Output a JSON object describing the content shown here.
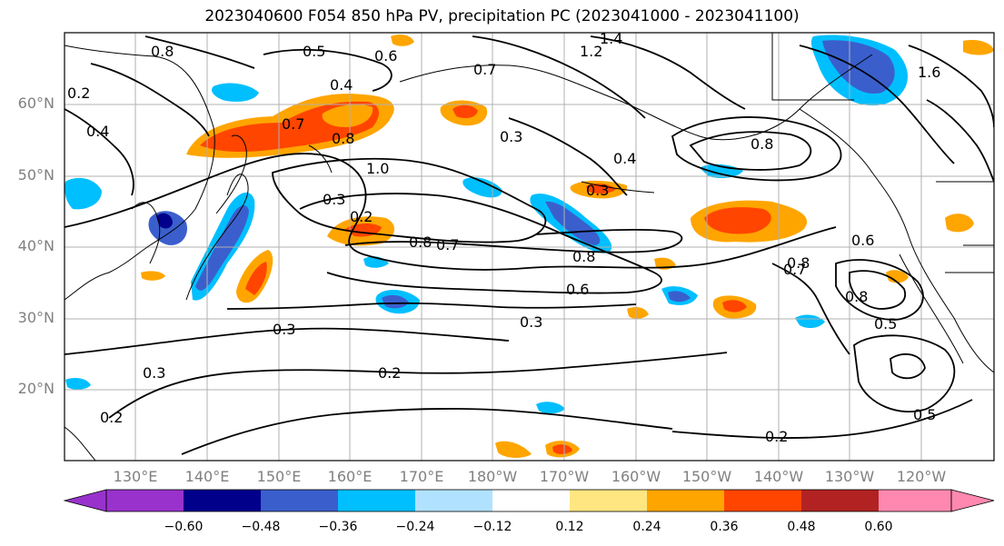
{
  "title": "2023040600 F054 850 hPa PV, precipitation PC (2023041000 - 2023041100)",
  "map": {
    "lat_labels": [
      "60°N",
      "50°N",
      "40°N",
      "30°N",
      "20°N"
    ],
    "lon_labels": [
      "130°E",
      "140°E",
      "150°E",
      "160°E",
      "170°E",
      "180°W",
      "170°W",
      "160°W",
      "150°W",
      "140°W",
      "130°W",
      "120°W"
    ],
    "contour_labels": [
      "0.5",
      "0.6",
      "0.4",
      "0.7",
      "1.2",
      "1.4",
      "0.8",
      "0.3",
      "0.2",
      "0.4",
      "0.8",
      "0.7",
      "1.0",
      "0.3",
      "0.8",
      "0.4",
      "0.3",
      "0.2",
      "0.8",
      "0.7",
      "0.8",
      "0.6",
      "0.6",
      "0.8",
      "0.7",
      "0.8",
      "0.3",
      "0.3",
      "0.2",
      "0.3",
      "0.2",
      "0.2",
      "0.5",
      "0.5",
      "1.6"
    ],
    "colors": {
      "land": "#000000",
      "grid": "#b0b0b0",
      "contour": "#000000"
    }
  },
  "colorbar": {
    "ticks": [
      "−0.60",
      "−0.48",
      "−0.36",
      "−0.24",
      "−0.12",
      "0.12",
      "0.24",
      "0.36",
      "0.48",
      "0.60"
    ],
    "colors": [
      "#9932cc",
      "#00008b",
      "#3a5fcd",
      "#00bfff",
      "#b0e2ff",
      "#ffffff",
      "#ffe680",
      "#ffa500",
      "#ff4500",
      "#b22222",
      "#ff88b0"
    ]
  }
}
